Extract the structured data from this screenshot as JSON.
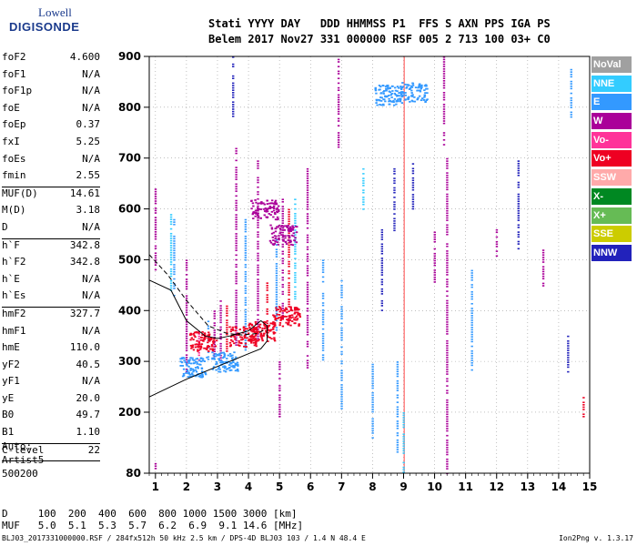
{
  "logo": {
    "line1": "Lowell",
    "line2": "DIGISONDE"
  },
  "header": {
    "row1": "Stati YYYY DAY   DDD HHMMSS P1  FFS S AXN PPS IGA PS",
    "row2": "Belem 2017 Nov27 331 000000 RSF 005 2 713 100 03+ C0"
  },
  "params_groups": [
    [
      [
        "foF2",
        "4.600"
      ],
      [
        "foF1",
        "N/A"
      ],
      [
        "foF1p",
        "N/A"
      ],
      [
        "foE",
        "N/A"
      ],
      [
        "foEp",
        "0.37"
      ],
      [
        "fxI",
        "5.25"
      ],
      [
        "foEs",
        "N/A"
      ],
      [
        "fmin",
        "2.55"
      ]
    ],
    [
      [
        "MUF(D)",
        "14.61"
      ],
      [
        "M(D)",
        "3.18"
      ],
      [
        "D",
        "N/A"
      ]
    ],
    [
      [
        "h`F",
        "342.8"
      ],
      [
        "h`F2",
        "342.8"
      ],
      [
        "h`E",
        "N/A"
      ],
      [
        "h`Es",
        "N/A"
      ]
    ],
    [
      [
        "hmF2",
        "327.7"
      ],
      [
        "hmF1",
        "N/A"
      ],
      [
        "hmE",
        "110.0"
      ],
      [
        "yF2",
        "40.5"
      ],
      [
        "yF1",
        "N/A"
      ],
      [
        "yE",
        "20.0"
      ],
      [
        "B0",
        "49.7"
      ],
      [
        "B1",
        "1.10"
      ]
    ],
    [
      [
        "C-level",
        "22"
      ]
    ]
  ],
  "auto": {
    "line1": "Auto:",
    "line2": "Artist5",
    "line3": "500200"
  },
  "scale_table": {
    "d_row": "D     100  200  400  600  800 1000 1500 3000 [km]",
    "muf_row": "MUF   5.0  5.1  5.3  5.7  6.2  6.9  9.1 14.6 [MHz]"
  },
  "footer": "BLJ03_2017331000000.RSF / 284fx512h 50 kHz 2.5 km / DPS-4D BLJ03 103 / 1.4 N 48.4 E",
  "version": "Ion2Png v. 1.3.17",
  "legend": [
    {
      "label": "NoVal",
      "color": "#a0a0a0"
    },
    {
      "label": "NNE",
      "color": "#33ccff"
    },
    {
      "label": "E",
      "color": "#3399ff"
    },
    {
      "label": "W",
      "color": "#aa0099"
    },
    {
      "label": "Vo-",
      "color": "#ff3399"
    },
    {
      "label": "Vo+",
      "color": "#ee0022"
    },
    {
      "label": "SSW",
      "color": "#ffaaaa"
    },
    {
      "label": "X-",
      "color": "#008822"
    },
    {
      "label": "X+",
      "color": "#66bb55"
    },
    {
      "label": "SSE",
      "color": "#cccc00"
    },
    {
      "label": "NNW",
      "color": "#2222bb"
    }
  ],
  "chart_data": {
    "type": "scatter",
    "title": "",
    "xlabel": "",
    "ylabel": "",
    "xlim": [
      0.8,
      15.0
    ],
    "ylim": [
      80,
      900
    ],
    "xticks": [
      1,
      2,
      3,
      4,
      5,
      6,
      7,
      8,
      9,
      10,
      11,
      12,
      13,
      14,
      15
    ],
    "yticks": [
      80,
      200,
      300,
      400,
      500,
      600,
      700,
      800,
      900
    ],
    "grid": true,
    "columns": [
      {
        "x": 1.0,
        "y0": 480,
        "y1": 640,
        "color": "#aa0099"
      },
      {
        "x": 1.0,
        "y0": 90,
        "y1": 100,
        "color": "#aa0099"
      },
      {
        "x": 1.5,
        "y0": 440,
        "y1": 590,
        "color": "#33ccff"
      },
      {
        "x": 1.6,
        "y0": 430,
        "y1": 580,
        "color": "#3399ff"
      },
      {
        "x": 2.0,
        "y0": 280,
        "y1": 500,
        "color": "#aa0099"
      },
      {
        "x": 2.4,
        "y0": 300,
        "y1": 360,
        "color": "#ff3399"
      },
      {
        "x": 2.7,
        "y0": 300,
        "y1": 380,
        "color": "#3399ff"
      },
      {
        "x": 2.9,
        "y0": 310,
        "y1": 400,
        "color": "#aa0099"
      },
      {
        "x": 3.1,
        "y0": 300,
        "y1": 420,
        "color": "#aa0099"
      },
      {
        "x": 3.3,
        "y0": 320,
        "y1": 410,
        "color": "#ee0022"
      },
      {
        "x": 3.6,
        "y0": 330,
        "y1": 720,
        "color": "#aa0099"
      },
      {
        "x": 3.5,
        "y0": 780,
        "y1": 900,
        "color": "#2222bb"
      },
      {
        "x": 3.9,
        "y0": 320,
        "y1": 580,
        "color": "#3399ff"
      },
      {
        "x": 4.3,
        "y0": 340,
        "y1": 700,
        "color": "#aa0099"
      },
      {
        "x": 4.6,
        "y0": 350,
        "y1": 460,
        "color": "#ee0022"
      },
      {
        "x": 4.9,
        "y0": 360,
        "y1": 540,
        "color": "#3399ff"
      },
      {
        "x": 5.1,
        "y0": 380,
        "y1": 620,
        "color": "#aa0099"
      },
      {
        "x": 5.3,
        "y0": 380,
        "y1": 600,
        "color": "#ee0022"
      },
      {
        "x": 5.5,
        "y0": 420,
        "y1": 620,
        "color": "#33ccff"
      },
      {
        "x": 5.0,
        "y0": 190,
        "y1": 300,
        "color": "#aa0099"
      },
      {
        "x": 5.9,
        "y0": 280,
        "y1": 680,
        "color": "#aa0099"
      },
      {
        "x": 6.4,
        "y0": 300,
        "y1": 500,
        "color": "#3399ff"
      },
      {
        "x": 6.9,
        "y0": 720,
        "y1": 900,
        "color": "#aa0099"
      },
      {
        "x": 7.0,
        "y0": 200,
        "y1": 460,
        "color": "#3399ff"
      },
      {
        "x": 7.7,
        "y0": 600,
        "y1": 680,
        "color": "#33ccff"
      },
      {
        "x": 8.3,
        "y0": 400,
        "y1": 560,
        "color": "#2222bb"
      },
      {
        "x": 8.0,
        "y0": 150,
        "y1": 300,
        "color": "#3399ff"
      },
      {
        "x": 8.7,
        "y0": 550,
        "y1": 680,
        "color": "#2222bb"
      },
      {
        "x": 8.8,
        "y0": 120,
        "y1": 300,
        "color": "#3399ff"
      },
      {
        "x": 9.3,
        "y0": 600,
        "y1": 690,
        "color": "#2222bb"
      },
      {
        "x": 9.0,
        "y0": 80,
        "y1": 200,
        "color": "#33ccff"
      },
      {
        "x": 10.0,
        "y0": 450,
        "y1": 560,
        "color": "#aa0099"
      },
      {
        "x": 10.3,
        "y0": 720,
        "y1": 900,
        "color": "#aa0099"
      },
      {
        "x": 10.4,
        "y0": 80,
        "y1": 700,
        "color": "#aa0099"
      },
      {
        "x": 11.2,
        "y0": 280,
        "y1": 480,
        "color": "#3399ff"
      },
      {
        "x": 12.0,
        "y0": 500,
        "y1": 560,
        "color": "#aa0099"
      },
      {
        "x": 12.7,
        "y0": 520,
        "y1": 700,
        "color": "#2222bb"
      },
      {
        "x": 13.5,
        "y0": 450,
        "y1": 520,
        "color": "#aa0099"
      },
      {
        "x": 14.3,
        "y0": 280,
        "y1": 360,
        "color": "#2222bb"
      },
      {
        "x": 14.4,
        "y0": 780,
        "y1": 880,
        "color": "#3399ff"
      },
      {
        "x": 14.8,
        "y0": 190,
        "y1": 230,
        "color": "#ee0022"
      }
    ],
    "clusters": [
      {
        "x": 9.3,
        "y": 830,
        "color": "#3399ff"
      },
      {
        "x": 8.5,
        "y": 825,
        "color": "#3399ff"
      },
      {
        "x": 3.8,
        "y": 350,
        "color": "#ee0022"
      },
      {
        "x": 4.4,
        "y": 360,
        "color": "#ee0022"
      },
      {
        "x": 5.2,
        "y": 390,
        "color": "#ee0022"
      },
      {
        "x": 2.5,
        "y": 340,
        "color": "#ee0022"
      },
      {
        "x": 3.2,
        "y": 300,
        "color": "#3399ff"
      },
      {
        "x": 2.2,
        "y": 290,
        "color": "#3399ff"
      },
      {
        "x": 5.1,
        "y": 550,
        "color": "#aa0099"
      },
      {
        "x": 4.5,
        "y": 600,
        "color": "#aa0099"
      }
    ],
    "profile_lines": [
      {
        "style": "solid",
        "points": [
          [
            0.8,
            230
          ],
          [
            2.0,
            265
          ],
          [
            3.0,
            290
          ],
          [
            4.0,
            315
          ],
          [
            4.4,
            325
          ],
          [
            4.6,
            340
          ],
          [
            4.6,
            370
          ],
          [
            4.4,
            380
          ],
          [
            4.0,
            360
          ],
          [
            3.4,
            350
          ],
          [
            3.0,
            345
          ],
          [
            2.6,
            350
          ],
          [
            2.0,
            380
          ],
          [
            1.5,
            440
          ],
          [
            0.8,
            460
          ]
        ]
      },
      {
        "style": "dashed",
        "points": [
          [
            0.8,
            510
          ],
          [
            1.4,
            470
          ],
          [
            2.0,
            420
          ],
          [
            2.7,
            370
          ],
          [
            3.3,
            355
          ],
          [
            3.8,
            352
          ],
          [
            4.3,
            355
          ],
          [
            4.5,
            362
          ]
        ]
      }
    ],
    "vertical_marker": {
      "x": 9.02,
      "y0": 80,
      "y1": 900,
      "color": "#ff6666"
    }
  }
}
